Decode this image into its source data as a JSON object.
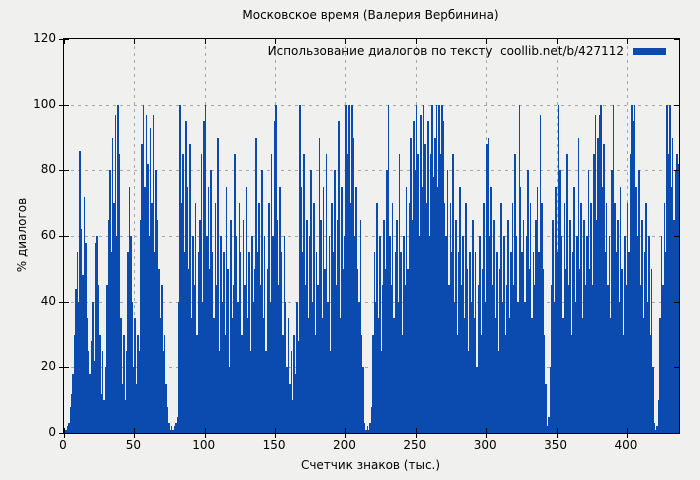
{
  "chart_data": {
    "type": "bar",
    "title": "Московское время (Валерия Вербинина)",
    "xlabel": "Счетчик знаков (тыс.)",
    "ylabel": "% диалогов",
    "legend": "Использование диалогов по тексту  coollib.net/b/427112",
    "legend_position": "top-right-inside",
    "grid": true,
    "xlim": [
      0,
      437
    ],
    "ylim": [
      0,
      120
    ],
    "x_ticks": [
      0,
      50,
      100,
      150,
      200,
      250,
      300,
      350,
      400
    ],
    "y_ticks": [
      0,
      20,
      40,
      60,
      80,
      100,
      120
    ],
    "bar_color": "#0b4bb0",
    "bg_color": "#f0f0ee",
    "grid_color": "#a8a8a8",
    "axis_color": "#000000",
    "x_start": 0,
    "x_step": 1,
    "values": [
      0,
      1,
      2,
      3,
      8,
      12,
      18,
      30,
      44,
      55,
      40,
      86,
      62,
      48,
      72,
      58,
      35,
      25,
      18,
      28,
      40,
      22,
      58,
      60,
      45,
      30,
      12,
      25,
      10,
      20,
      45,
      65,
      80,
      55,
      90,
      70,
      97,
      60,
      100,
      85,
      35,
      15,
      30,
      10,
      25,
      55,
      75,
      60,
      40,
      20,
      35,
      15,
      30,
      25,
      65,
      88,
      100,
      75,
      97,
      82,
      60,
      93,
      70,
      97,
      55,
      80,
      65,
      50,
      35,
      45,
      25,
      30,
      15,
      8,
      3,
      1,
      2,
      1,
      2,
      3,
      5,
      40,
      100,
      70,
      85,
      55,
      95,
      75,
      50,
      88,
      35,
      60,
      45,
      70,
      30,
      55,
      65,
      85,
      40,
      95,
      100,
      60,
      75,
      50,
      80,
      55,
      35,
      70,
      45,
      90,
      25,
      60,
      40,
      55,
      30,
      75,
      50,
      20,
      65,
      35,
      45,
      85,
      60,
      40,
      70,
      55,
      30,
      65,
      45,
      75,
      35,
      55,
      25,
      60,
      40,
      50,
      90,
      55,
      70,
      45,
      80,
      35,
      60,
      25,
      50,
      70,
      40,
      85,
      60,
      95,
      100,
      65,
      45,
      75,
      55,
      30,
      60,
      40,
      20,
      35,
      15,
      25,
      10,
      30,
      18,
      40,
      28,
      100,
      75,
      55,
      85,
      45,
      65,
      35,
      60,
      80,
      40,
      70,
      30,
      55,
      45,
      90,
      65,
      35,
      75,
      50,
      85,
      40,
      60,
      25,
      70,
      55,
      80,
      45,
      65,
      95,
      35,
      75,
      50,
      60,
      100,
      85,
      100,
      70,
      100,
      90,
      60,
      75,
      50,
      40,
      65,
      30,
      20,
      3,
      1,
      2,
      1,
      3,
      8,
      30,
      55,
      40,
      70,
      35,
      60,
      25,
      45,
      65,
      50,
      80,
      100,
      60,
      45,
      70,
      35,
      55,
      65,
      40,
      85,
      55,
      30,
      60,
      45,
      75,
      50,
      70,
      90,
      65,
      95,
      80,
      100,
      85,
      60,
      97,
      75,
      100,
      88,
      70,
      95,
      60,
      85,
      100,
      78,
      90,
      100,
      75,
      100,
      85,
      100,
      95,
      70,
      60,
      80,
      45,
      70,
      55,
      85,
      40,
      65,
      30,
      55,
      75,
      45,
      60,
      35,
      70,
      50,
      25,
      55,
      40,
      65,
      35,
      55,
      20,
      45,
      60,
      30,
      50,
      70,
      40,
      88,
      90,
      60,
      75,
      45,
      65,
      35,
      55,
      25,
      50,
      70,
      40,
      60,
      30,
      45,
      65,
      35,
      55,
      70,
      45,
      85,
      60,
      40,
      100,
      75,
      55,
      65,
      40,
      60,
      80,
      50,
      70,
      35,
      55,
      45,
      65,
      75,
      55,
      97,
      70,
      50,
      30,
      15,
      2,
      5,
      20,
      45,
      65,
      40,
      75,
      55,
      100,
      80,
      60,
      35,
      70,
      50,
      85,
      45,
      65,
      30,
      55,
      75,
      40,
      60,
      90,
      50,
      70,
      35,
      65,
      45,
      60,
      80,
      50,
      70,
      45,
      85,
      97,
      65,
      90,
      97,
      100,
      75,
      88,
      55,
      70,
      45,
      60,
      35,
      80,
      100,
      70,
      55,
      65,
      40,
      75,
      50,
      30,
      60,
      45,
      70,
      55,
      85,
      100,
      95,
      100,
      75,
      60,
      80,
      45,
      65,
      35,
      55,
      70,
      40,
      60,
      30,
      50,
      20,
      3,
      1,
      2,
      10,
      35,
      60,
      45,
      70,
      55,
      100,
      85,
      100,
      75,
      90,
      65,
      80,
      85,
      82
    ]
  }
}
